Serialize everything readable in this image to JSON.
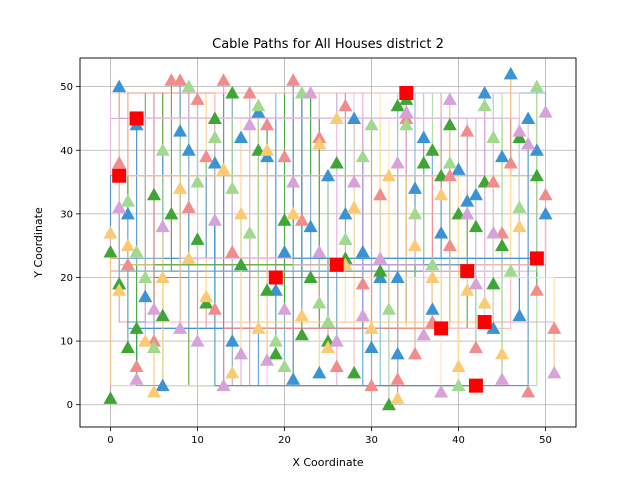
{
  "chart_data": {
    "type": "scatter",
    "title": "Cable Paths for All Houses district 2",
    "xlabel": "X Coordinate",
    "ylabel": "Y Coordinate",
    "xlim": [
      -3.5,
      53.5
    ],
    "ylim": [
      -3.5,
      54.5
    ],
    "xticks": [
      0,
      10,
      20,
      30,
      40,
      50
    ],
    "yticks": [
      0,
      10,
      20,
      30,
      40,
      50
    ],
    "grid": true,
    "legend": "none",
    "palette": [
      "#3a93d3",
      "#6baed6",
      "#3fa535",
      "#a1d98f",
      "#f28c8c",
      "#f9b6b6",
      "#fdca74",
      "#ffe0a3",
      "#d7a1d9",
      "#e8c0e8"
    ],
    "series": [
      {
        "marker": "square",
        "color": "#ff0000",
        "x": [
          1,
          3,
          34,
          19,
          26,
          41,
          49,
          38,
          43,
          42
        ],
        "y": [
          36,
          45,
          49,
          20,
          22,
          21,
          23,
          12,
          13,
          3
        ]
      },
      {
        "marker": "triangle",
        "color": "#3a93d3",
        "x": [
          1,
          3,
          9,
          12,
          17,
          18,
          21,
          23,
          28,
          30,
          33,
          36,
          40,
          43,
          46,
          49,
          50,
          4,
          8,
          15,
          20,
          24,
          27,
          31,
          35,
          38,
          41,
          44,
          47,
          2,
          6,
          14,
          19,
          25,
          29,
          33,
          37,
          42,
          45,
          48
        ],
        "y": [
          50,
          44,
          40,
          38,
          46,
          39,
          4,
          28,
          45,
          9,
          20,
          42,
          37,
          49,
          52,
          40,
          30,
          17,
          43,
          42,
          24,
          5,
          30,
          20,
          34,
          27,
          32,
          12,
          14,
          30,
          3,
          10,
          18,
          36,
          24,
          8,
          15,
          33,
          39,
          45
        ]
      },
      {
        "marker": "triangle",
        "color": "#3fa535",
        "x": [
          0,
          0,
          1,
          3,
          7,
          10,
          14,
          15,
          19,
          20,
          23,
          26,
          31,
          32,
          34,
          37,
          39,
          44,
          45,
          49,
          2,
          5,
          11,
          17,
          22,
          28,
          33,
          40,
          43,
          12,
          18,
          27,
          36,
          42,
          47,
          6,
          25,
          38
        ],
        "y": [
          1,
          24,
          19,
          12,
          30,
          26,
          49,
          22,
          8,
          29,
          20,
          38,
          21,
          0,
          48,
          40,
          44,
          19,
          25,
          36,
          9,
          33,
          16,
          40,
          11,
          5,
          47,
          30,
          35,
          45,
          18,
          23,
          38,
          28,
          42,
          14,
          10,
          36
        ]
      },
      {
        "marker": "triangle",
        "color": "#f28c8c",
        "x": [
          1,
          7,
          8,
          10,
          11,
          13,
          16,
          20,
          21,
          27,
          31,
          33,
          35,
          39,
          42,
          46,
          50,
          51,
          2,
          5,
          18,
          24,
          29,
          37,
          44,
          48,
          3,
          9,
          14,
          26,
          30,
          41,
          45,
          49,
          22,
          34,
          12,
          39
        ],
        "y": [
          38,
          51,
          51,
          48,
          39,
          51,
          49,
          39,
          51,
          47,
          33,
          4,
          8,
          36,
          9,
          38,
          33,
          12,
          22,
          10,
          44,
          42,
          19,
          13,
          35,
          2,
          6,
          31,
          24,
          6,
          3,
          43,
          27,
          18,
          29,
          45,
          15,
          25
        ]
      },
      {
        "marker": "triangle",
        "color": "#fdca74",
        "x": [
          0,
          1,
          2,
          5,
          6,
          8,
          11,
          14,
          15,
          18,
          21,
          24,
          25,
          27,
          28,
          30,
          33,
          35,
          38,
          40,
          43,
          47,
          4,
          13,
          22,
          32,
          37,
          45,
          9,
          17,
          26,
          41
        ],
        "y": [
          27,
          18,
          25,
          2,
          20,
          34,
          17,
          5,
          30,
          40,
          30,
          41,
          9,
          22,
          31,
          12,
          1,
          25,
          33,
          6,
          16,
          28,
          10,
          37,
          14,
          36,
          20,
          8,
          23,
          12,
          45,
          18
        ]
      },
      {
        "marker": "triangle",
        "color": "#a1d98f",
        "x": [
          2,
          4,
          6,
          9,
          12,
          14,
          17,
          19,
          22,
          24,
          27,
          29,
          32,
          34,
          37,
          40,
          44,
          47,
          49,
          5,
          10,
          20,
          30,
          39,
          46,
          16,
          25,
          35,
          43,
          3
        ],
        "y": [
          32,
          20,
          40,
          50,
          42,
          34,
          47,
          10,
          49,
          16,
          26,
          39,
          15,
          44,
          22,
          3,
          42,
          31,
          50,
          9,
          35,
          6,
          44,
          38,
          21,
          27,
          13,
          30,
          47,
          24
        ]
      },
      {
        "marker": "triangle",
        "color": "#d7a1d9",
        "x": [
          3,
          6,
          10,
          13,
          16,
          20,
          23,
          26,
          28,
          31,
          34,
          38,
          41,
          45,
          48,
          50,
          1,
          8,
          18,
          24,
          33,
          42,
          51,
          5,
          15,
          29,
          36,
          44,
          12,
          21,
          39,
          47
        ],
        "y": [
          4,
          28,
          10,
          3,
          44,
          15,
          49,
          10,
          35,
          23,
          46,
          2,
          30,
          4,
          41,
          46,
          31,
          12,
          7,
          24,
          38,
          19,
          5,
          15,
          8,
          14,
          11,
          27,
          29,
          35,
          48,
          43
        ]
      }
    ]
  }
}
